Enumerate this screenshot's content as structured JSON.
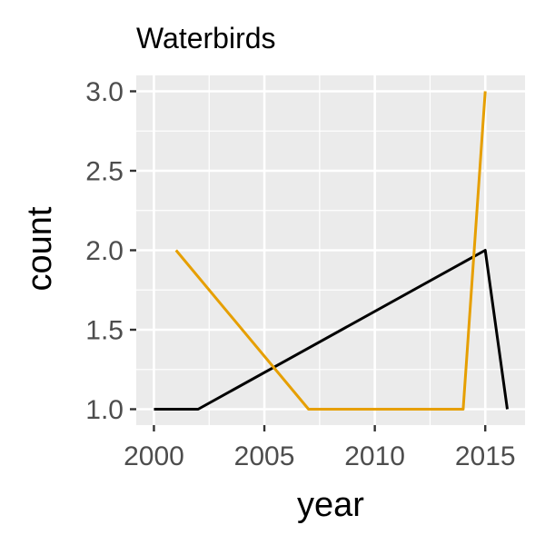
{
  "chart_data": {
    "type": "line",
    "title": "Waterbirds",
    "xlabel": "year",
    "ylabel": "count",
    "xlim": [
      1999.2,
      2016.8
    ],
    "ylim": [
      0.9,
      3.1
    ],
    "x_ticks": [
      2000,
      2005,
      2010,
      2015
    ],
    "x_tick_labels": [
      "2000",
      "2005",
      "2010",
      "2015"
    ],
    "y_ticks": [
      1.0,
      1.5,
      2.0,
      2.5,
      3.0
    ],
    "y_tick_labels": [
      "1.0",
      "1.5",
      "2.0",
      "2.5",
      "3.0"
    ],
    "grid": true,
    "panel_background": "#ebebeb",
    "legend": "none",
    "series": [
      {
        "color": "#000000",
        "points": [
          [
            2000,
            1.0
          ],
          [
            2002,
            1.0
          ],
          [
            2015,
            2.0
          ],
          [
            2016,
            1.0
          ]
        ]
      },
      {
        "color": "#E69F00",
        "points": [
          [
            2001,
            2.0
          ],
          [
            2007,
            1.0
          ],
          [
            2014,
            1.0
          ],
          [
            2015,
            3.0
          ]
        ]
      }
    ]
  }
}
